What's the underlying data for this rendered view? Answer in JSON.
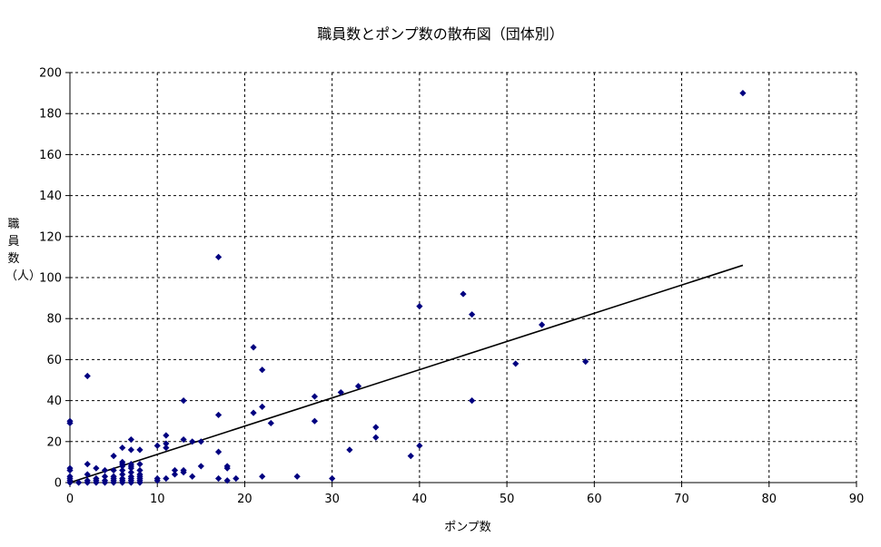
{
  "chart_data": {
    "type": "scatter",
    "title": "職員数とポンプ数の散布図（団体別）",
    "xlabel": "ポンプ数",
    "ylabel": "職員数（人）",
    "xlim": [
      0,
      90
    ],
    "ylim": [
      0,
      200
    ],
    "xticks": [
      0,
      10,
      20,
      30,
      40,
      50,
      60,
      70,
      80,
      90
    ],
    "yticks": [
      0,
      20,
      40,
      60,
      80,
      100,
      120,
      140,
      160,
      180,
      200
    ],
    "grid": true,
    "legend": "none",
    "marker_color": "#000080",
    "trendline": {
      "type": "linear",
      "x": [
        0,
        77
      ],
      "y": [
        -1,
        106
      ]
    },
    "points": [
      [
        0,
        29
      ],
      [
        0,
        30
      ],
      [
        0,
        7
      ],
      [
        0,
        6
      ],
      [
        0,
        3
      ],
      [
        0,
        2
      ],
      [
        0,
        1
      ],
      [
        0,
        0
      ],
      [
        1,
        0
      ],
      [
        2,
        0
      ],
      [
        2,
        52
      ],
      [
        2,
        9
      ],
      [
        2,
        4
      ],
      [
        2,
        1
      ],
      [
        3,
        7
      ],
      [
        3,
        2
      ],
      [
        3,
        1
      ],
      [
        3,
        0
      ],
      [
        4,
        6
      ],
      [
        4,
        3
      ],
      [
        4,
        1
      ],
      [
        4,
        0
      ],
      [
        5,
        13
      ],
      [
        5,
        6
      ],
      [
        5,
        3
      ],
      [
        5,
        2
      ],
      [
        5,
        1
      ],
      [
        5,
        0
      ],
      [
        6,
        17
      ],
      [
        6,
        10
      ],
      [
        6,
        9
      ],
      [
        6,
        8
      ],
      [
        6,
        6
      ],
      [
        6,
        4
      ],
      [
        6,
        2
      ],
      [
        6,
        1
      ],
      [
        6,
        0
      ],
      [
        7,
        21
      ],
      [
        7,
        16
      ],
      [
        7,
        9
      ],
      [
        7,
        8
      ],
      [
        7,
        7
      ],
      [
        7,
        5
      ],
      [
        7,
        3
      ],
      [
        7,
        2
      ],
      [
        7,
        1
      ],
      [
        7,
        0
      ],
      [
        8,
        16
      ],
      [
        8,
        9
      ],
      [
        8,
        6
      ],
      [
        8,
        4
      ],
      [
        8,
        3
      ],
      [
        8,
        2
      ],
      [
        8,
        1
      ],
      [
        8,
        0
      ],
      [
        10,
        18
      ],
      [
        10,
        2
      ],
      [
        10,
        1
      ],
      [
        11,
        23
      ],
      [
        11,
        19
      ],
      [
        11,
        17
      ],
      [
        11,
        2
      ],
      [
        12,
        6
      ],
      [
        12,
        4
      ],
      [
        13,
        40
      ],
      [
        13,
        21
      ],
      [
        13,
        6
      ],
      [
        13,
        5
      ],
      [
        14,
        20
      ],
      [
        14,
        3
      ],
      [
        15,
        20
      ],
      [
        15,
        8
      ],
      [
        17,
        110
      ],
      [
        17,
        33
      ],
      [
        17,
        15
      ],
      [
        17,
        2
      ],
      [
        18,
        8
      ],
      [
        18,
        7
      ],
      [
        18,
        1
      ],
      [
        19,
        2
      ],
      [
        21,
        66
      ],
      [
        21,
        34
      ],
      [
        22,
        55
      ],
      [
        22,
        37
      ],
      [
        22,
        3
      ],
      [
        23,
        29
      ],
      [
        26,
        3
      ],
      [
        28,
        42
      ],
      [
        28,
        30
      ],
      [
        30,
        2
      ],
      [
        31,
        44
      ],
      [
        32,
        16
      ],
      [
        33,
        47
      ],
      [
        35,
        27
      ],
      [
        35,
        22
      ],
      [
        39,
        13
      ],
      [
        40,
        86
      ],
      [
        40,
        18
      ],
      [
        45,
        92
      ],
      [
        46,
        82
      ],
      [
        46,
        40
      ],
      [
        51,
        58
      ],
      [
        54,
        77
      ],
      [
        59,
        59
      ],
      [
        77,
        190
      ]
    ]
  }
}
